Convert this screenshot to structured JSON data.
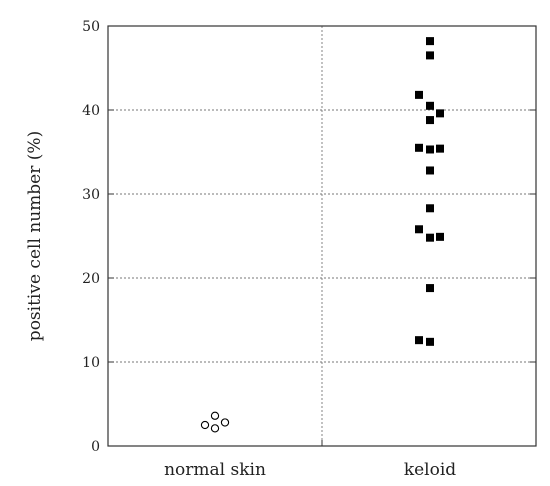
{
  "chart_data": {
    "type": "scatter",
    "title": "",
    "xlabel": "",
    "ylabel": "positive cell number  (%)",
    "ylim": [
      0,
      50
    ],
    "yticks": [
      0,
      10,
      20,
      30,
      40,
      50
    ],
    "categories": [
      "normal skin",
      "keloid"
    ],
    "grid": true,
    "series": [
      {
        "category": "normal skin",
        "marker": "open-circle",
        "points": [
          {
            "x": "normal skin",
            "y": 2.5
          },
          {
            "x": "normal skin",
            "y": 3.6
          },
          {
            "x": "normal skin",
            "y": 2.1
          },
          {
            "x": "normal skin",
            "y": 2.8
          }
        ]
      },
      {
        "category": "keloid",
        "marker": "filled-square",
        "points": [
          {
            "x": "keloid",
            "y": 48.2
          },
          {
            "x": "keloid",
            "y": 46.5
          },
          {
            "x": "keloid",
            "y": 41.8
          },
          {
            "x": "keloid",
            "y": 40.5
          },
          {
            "x": "keloid",
            "y": 39.6
          },
          {
            "x": "keloid",
            "y": 38.8
          },
          {
            "x": "keloid",
            "y": 35.5
          },
          {
            "x": "keloid",
            "y": 35.3
          },
          {
            "x": "keloid",
            "y": 35.4
          },
          {
            "x": "keloid",
            "y": 32.8
          },
          {
            "x": "keloid",
            "y": 28.3
          },
          {
            "x": "keloid",
            "y": 25.8
          },
          {
            "x": "keloid",
            "y": 24.8
          },
          {
            "x": "keloid",
            "y": 24.9
          },
          {
            "x": "keloid",
            "y": 18.8
          },
          {
            "x": "keloid",
            "y": 12.6
          },
          {
            "x": "keloid",
            "y": 12.4
          }
        ]
      }
    ]
  }
}
